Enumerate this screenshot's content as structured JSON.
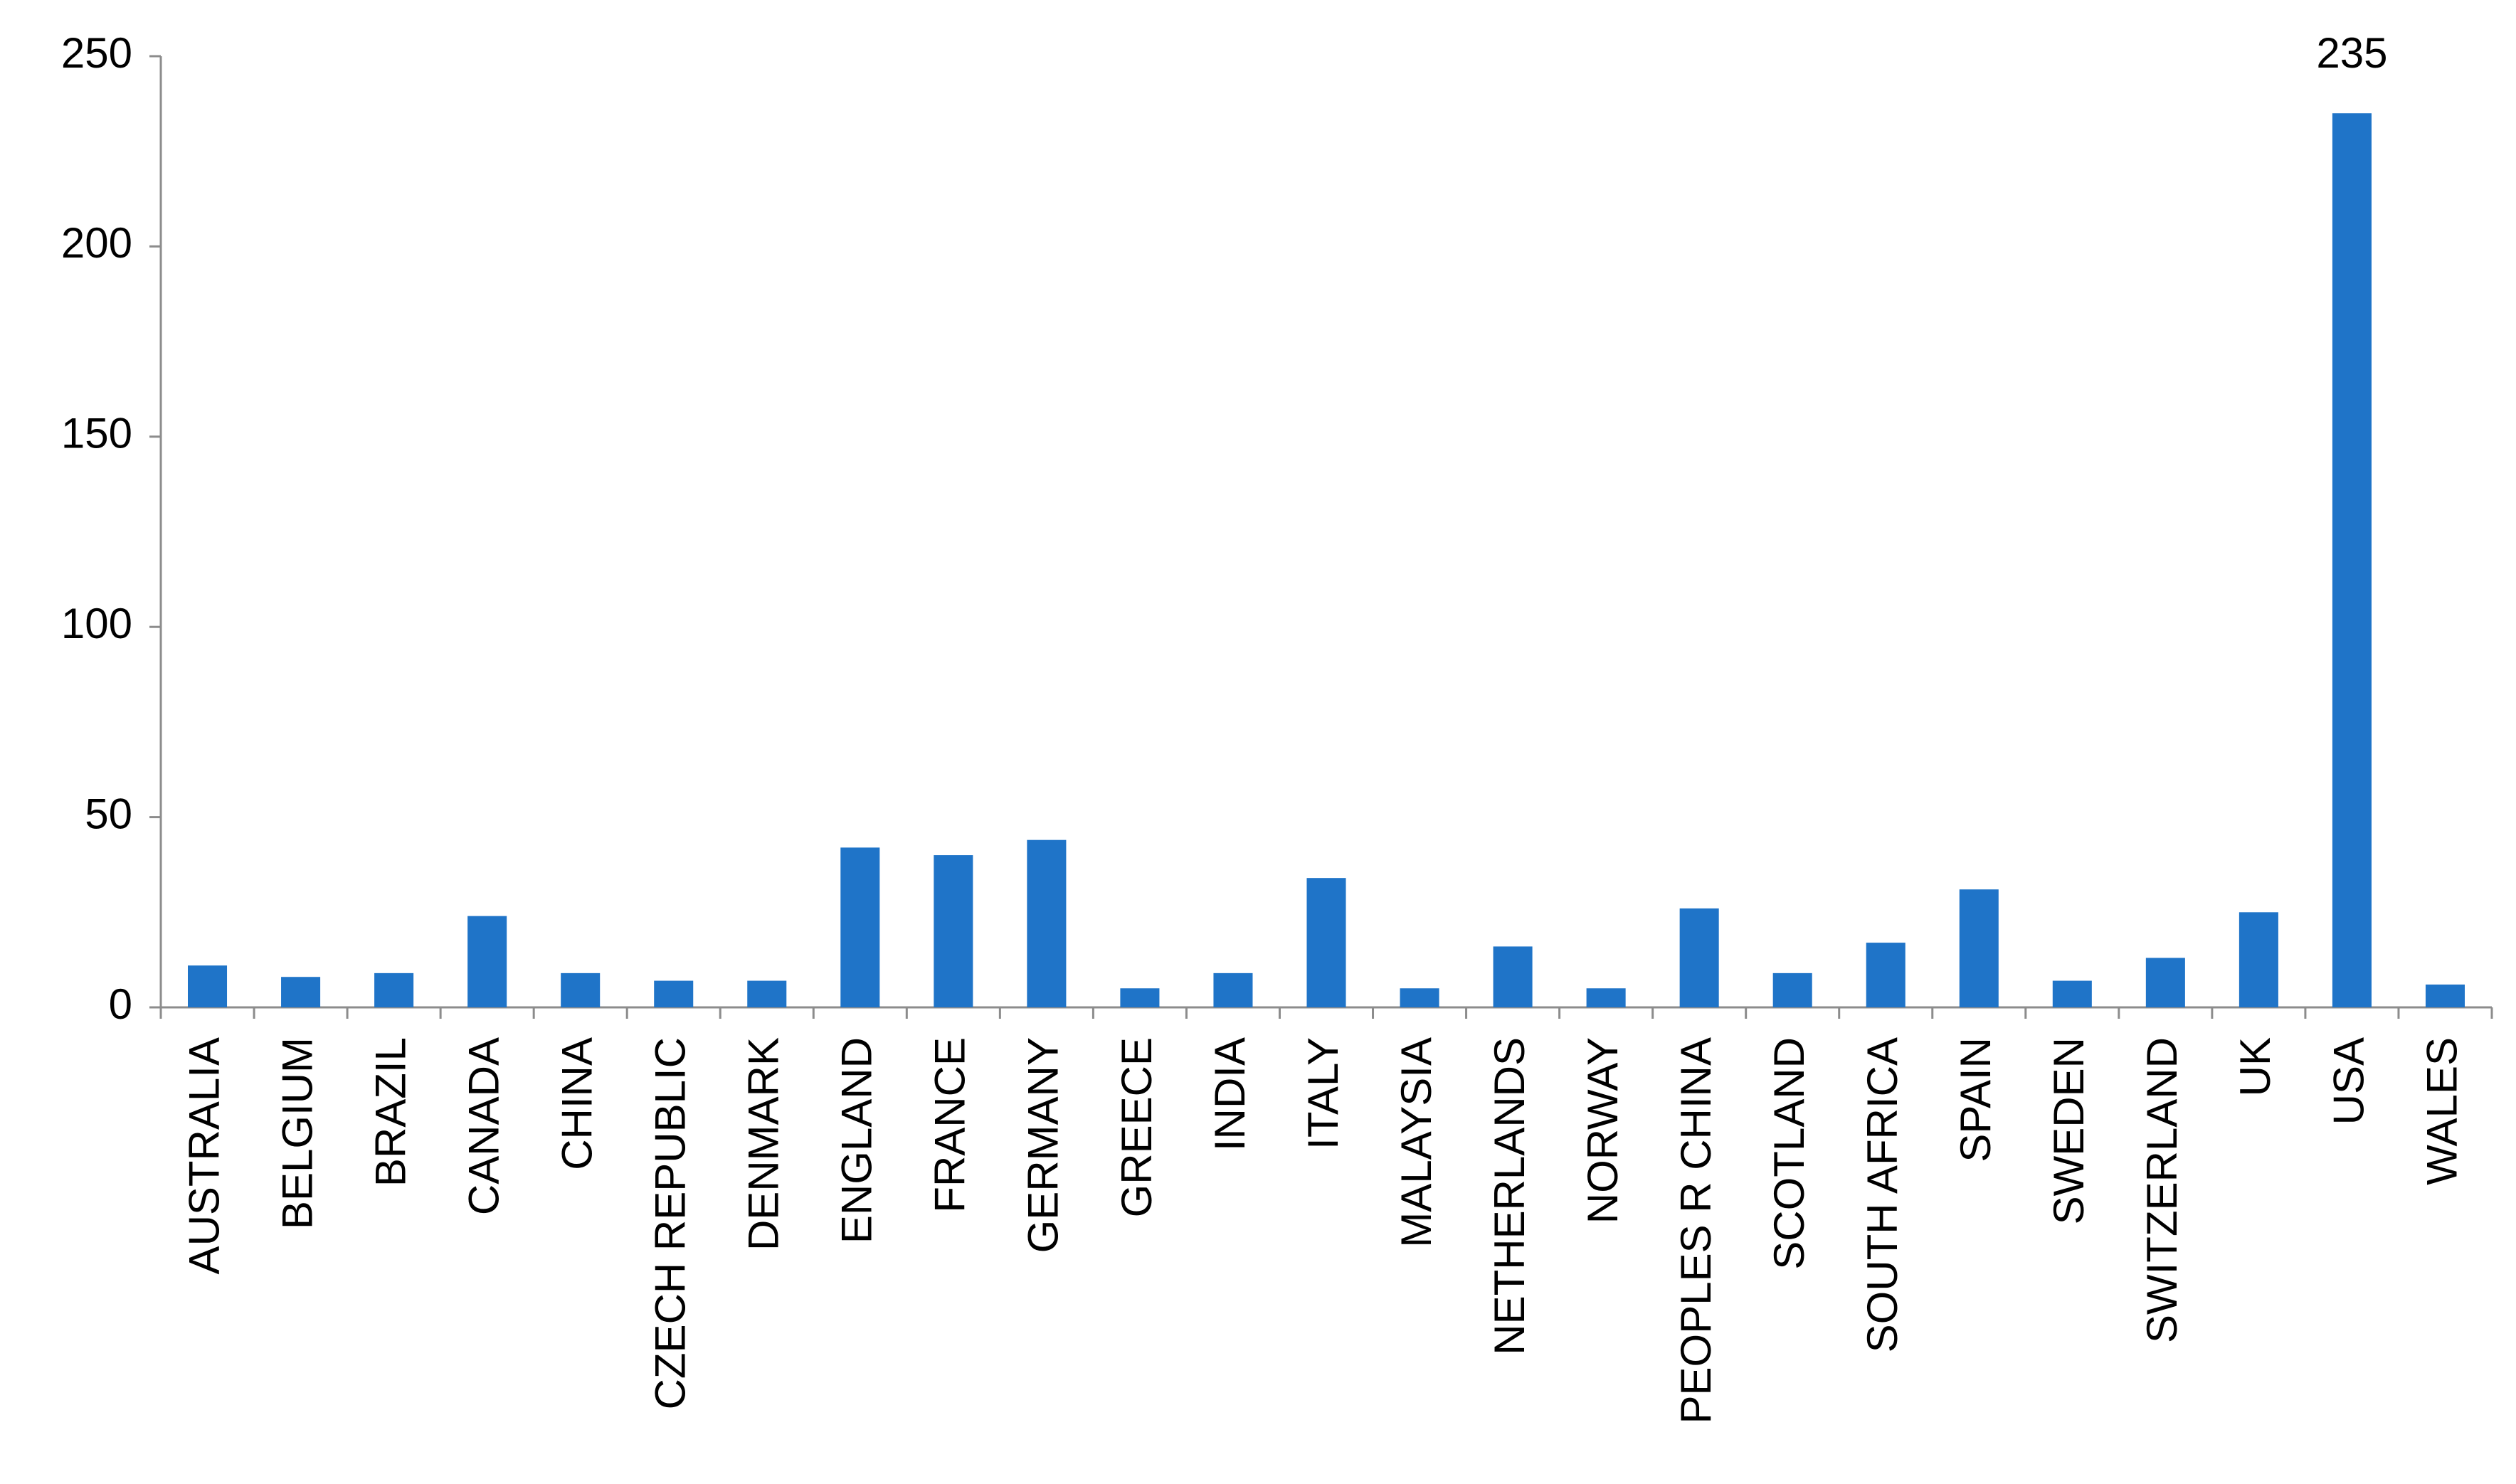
{
  "chart_data": {
    "type": "bar",
    "categories": [
      "AUSTRALIA",
      "BELGIUM",
      "BRAZIL",
      "CANADA",
      "CHINA",
      "CZECH REPUBLIC",
      "DENMARK",
      "ENGLAND",
      "FRANCE",
      "GERMANY",
      "GREECE",
      "INDIA",
      "ITALY",
      "MALAYSIA",
      "NETHERLANDS",
      "NORWAY",
      "PEOPLES R CHINA",
      "SCOTLAND",
      "SOUTH AFRICA",
      "SPAIN",
      "SWEDEN",
      "SWITZERLAND",
      "UK",
      "USA",
      "WALES"
    ],
    "values": [
      11,
      8,
      9,
      24,
      9,
      7,
      7,
      42,
      40,
      44,
      5,
      9,
      34,
      5,
      16,
      5,
      26,
      9,
      17,
      31,
      7,
      13,
      25,
      235,
      6
    ],
    "value_labels": [
      null,
      null,
      null,
      null,
      null,
      null,
      null,
      null,
      null,
      null,
      null,
      null,
      null,
      null,
      null,
      null,
      null,
      null,
      null,
      null,
      null,
      null,
      null,
      "235",
      null
    ],
    "color": "#1f74c8",
    "ylim": [
      0,
      250
    ],
    "yticks": [
      0,
      50,
      100,
      150,
      200,
      250
    ],
    "grid": false
  }
}
